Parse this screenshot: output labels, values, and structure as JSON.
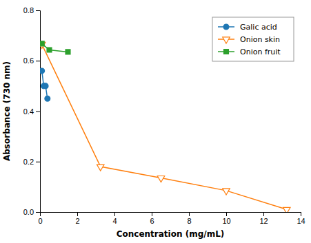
{
  "chart_data": {
    "type": "line",
    "xlabel": "Concentration (mg/mL)",
    "ylabel": "Absorbance (730 nm)",
    "xlim": [
      0,
      14
    ],
    "ylim": [
      0.0,
      0.8
    ],
    "xticks": [
      0,
      2,
      4,
      6,
      8,
      10,
      12,
      14
    ],
    "yticks": [
      {
        "value": 0.0,
        "label": "0.0"
      },
      0.2,
      0.4,
      0.6,
      0.8
    ],
    "legend": "upper right",
    "series": [
      {
        "name": "Galic acid",
        "marker": "circle",
        "x": [
          0.1,
          0.2,
          0.3,
          0.4
        ],
        "values": [
          0.56,
          0.5,
          0.5,
          0.45
        ]
      },
      {
        "name": "Onion skin",
        "marker": "triangle-down-open",
        "x": [
          0.1,
          3.25,
          6.5,
          10.0,
          13.25
        ],
        "values": [
          0.665,
          0.18,
          0.135,
          0.085,
          0.01
        ]
      },
      {
        "name": "Onion fruit",
        "marker": "square",
        "x": [
          0.1,
          0.5,
          1.5
        ],
        "values": [
          0.668,
          0.643,
          0.635
        ]
      }
    ]
  }
}
